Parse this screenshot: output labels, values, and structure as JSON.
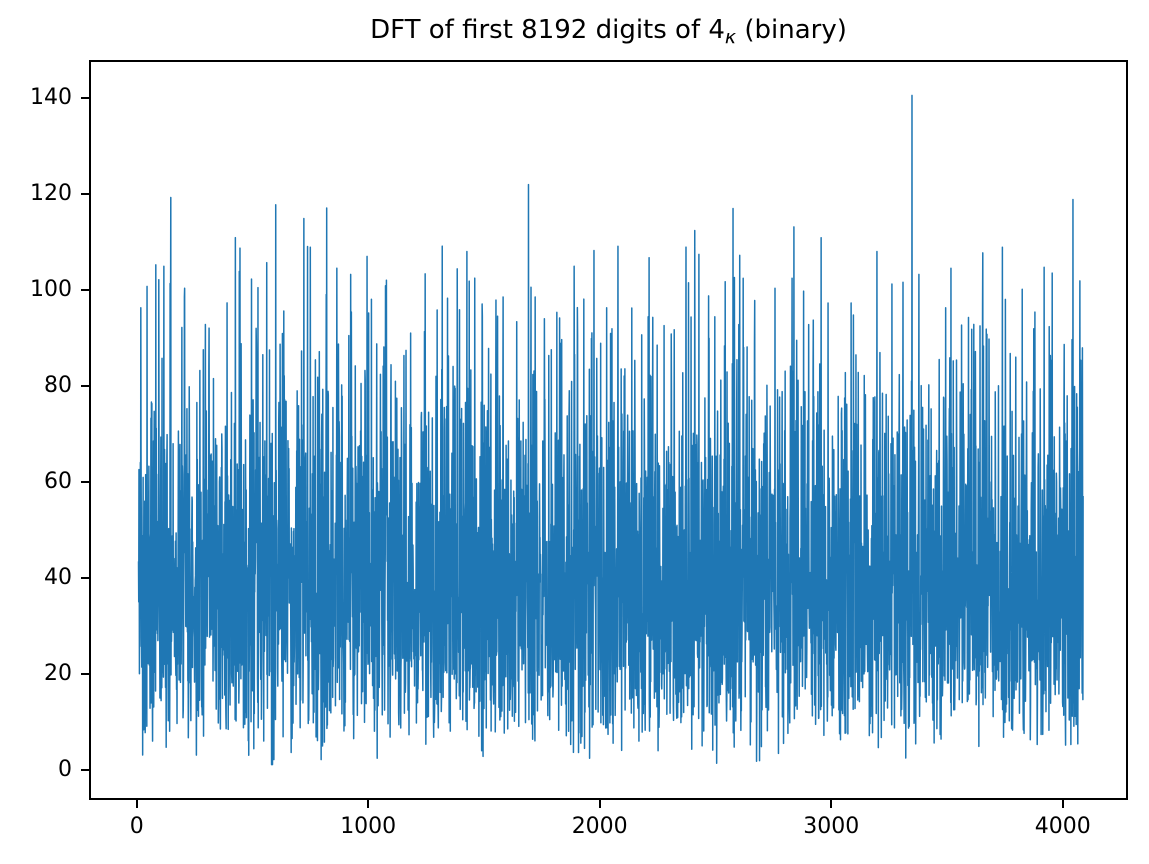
{
  "title": {
    "pre": "DFT of first 8192 digits of 4",
    "sub": "κ",
    "post": " (binary)"
  },
  "chart_data": {
    "type": "line",
    "title": "DFT of first 8192 digits of 4κ (binary)",
    "xlabel": "",
    "ylabel": "",
    "legend": null,
    "grid": false,
    "background": "#ffffff",
    "line_color": "#1f77b4",
    "line_width": 1.5,
    "x_ticks": [
      0,
      1000,
      2000,
      3000,
      4000
    ],
    "y_ticks": [
      0,
      20,
      40,
      60,
      80,
      100,
      120,
      140
    ],
    "xlim": [
      -206,
      4282
    ],
    "ylim": [
      -6.2,
      148.0
    ],
    "x_start": 0,
    "x_end": 4096,
    "n_points": 4097,
    "max_value": 141,
    "max_at_x": 3354,
    "min_value": 0.8,
    "noise_band_core": [
      20,
      60
    ],
    "noise_model": {
      "distribution": "rayleigh",
      "sigma": 32,
      "clip_min": 0.8,
      "clip_max": 116,
      "seed": 42
    },
    "prominent_peaks": [
      [
        10,
        96.5
      ],
      [
        37,
        101.0
      ],
      [
        110,
        105.2
      ],
      [
        140,
        119.6
      ],
      [
        200,
        100.6
      ],
      [
        290,
        93.0
      ],
      [
        420,
        111.2
      ],
      [
        440,
        109.0
      ],
      [
        490,
        102.5
      ],
      [
        595,
        118.1
      ],
      [
        717,
        115.2
      ],
      [
        816,
        117.4
      ],
      [
        860,
        104.8
      ],
      [
        920,
        103.5
      ],
      [
        1010,
        98.3
      ],
      [
        1180,
        91.2
      ],
      [
        1240,
        91.5
      ],
      [
        1340,
        98.5
      ],
      [
        1424,
        108.3
      ],
      [
        1490,
        97.3
      ],
      [
        1550,
        98.1
      ],
      [
        1691,
        122.3
      ],
      [
        1760,
        94.2
      ],
      [
        1889,
        105.2
      ],
      [
        1975,
        108.5
      ],
      [
        2030,
        96.5
      ],
      [
        2079,
        109.4
      ],
      [
        2230,
        94.5
      ],
      [
        2310,
        91.0
      ],
      [
        2412,
        112.7
      ],
      [
        2472,
        99.0
      ],
      [
        2578,
        117.3
      ],
      [
        2622,
        102.7
      ],
      [
        2760,
        100.6
      ],
      [
        2834,
        102.7
      ],
      [
        2884,
        100.0
      ],
      [
        2990,
        97.5
      ],
      [
        3100,
        95.0
      ],
      [
        3202,
        108.3
      ],
      [
        3267,
        101.5
      ],
      [
        3354,
        141.0
      ],
      [
        3384,
        103.5
      ],
      [
        3500,
        96.5
      ],
      [
        3613,
        92.0
      ],
      [
        3660,
        96.9
      ],
      [
        3746,
        109.2
      ],
      [
        3832,
        100.4
      ],
      [
        3927,
        105.0
      ],
      [
        4052,
        119.2
      ]
    ]
  },
  "layout_colors": {
    "spine": "#000000",
    "tick": "#000000",
    "text": "#000000"
  }
}
